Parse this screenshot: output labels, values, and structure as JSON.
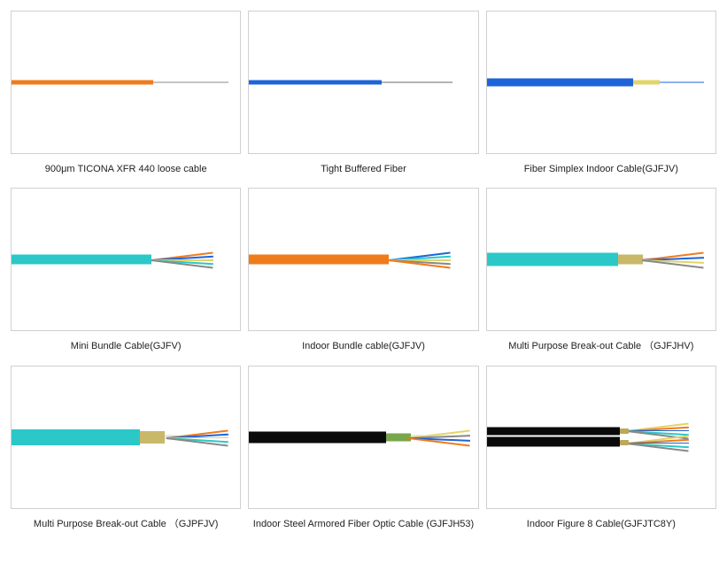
{
  "items": [
    {
      "caption": "900μm TICONA XFR 440 loose cable",
      "body_color": "#f07b1a",
      "body_width": 160,
      "body_height": 5,
      "fiber_color": "#888888",
      "fiber_start": 160,
      "fiber_end": 245,
      "style": "simple"
    },
    {
      "caption": "Tight Buffered Fiber",
      "body_color": "#1e64d8",
      "body_width": 150,
      "body_height": 5,
      "fiber_color": "#6a6a6a",
      "fiber_start": 150,
      "fiber_end": 230,
      "style": "simple"
    },
    {
      "caption": "Fiber Simplex Indoor Cable(GJFJV)",
      "body_color": "#1e64d8",
      "body_width": 165,
      "body_height": 9,
      "inner_color": "#e3d36a",
      "inner_start": 165,
      "inner_end": 195,
      "fiber_color": "#1e64d8",
      "fiber_start": 195,
      "fiber_end": 245,
      "style": "simplex"
    },
    {
      "caption": "Mini Bundle Cable(GJFV)",
      "body_color": "#2cc8c8",
      "body_width": 158,
      "body_height": 11,
      "splay_colors": [
        "#f07b1a",
        "#1e64d8",
        "#e3d36a",
        "#2cc8c8",
        "#888888"
      ],
      "splay_origin": 158,
      "style": "bundle"
    },
    {
      "caption": "Indoor Bundle cable(GJFJV)",
      "body_color": "#f07b1a",
      "body_width": 158,
      "body_height": 11,
      "splay_colors": [
        "#1e64d8",
        "#2cc8c8",
        "#e3d36a",
        "#888888",
        "#f07b1a"
      ],
      "splay_origin": 158,
      "style": "bundle"
    },
    {
      "caption": "Multi Purpose Break-out Cable （GJFJHV)",
      "body_color": "#2cc8c8",
      "body_width": 148,
      "body_height": 15,
      "inner_color": "#c9b86a",
      "splay_colors": [
        "#f07b1a",
        "#1e64d8",
        "#e3d36a",
        "#888888"
      ],
      "splay_origin": 175,
      "style": "breakout"
    },
    {
      "caption": "Multi Purpose Break-out Cable （GJPFJV)",
      "body_color": "#2cc8c8",
      "body_width": 145,
      "body_height": 18,
      "inner_color": "#c9b86a",
      "splay_colors": [
        "#f07b1a",
        "#1e64d8",
        "#e3d36a",
        "#2cc8c8",
        "#888888"
      ],
      "splay_origin": 175,
      "style": "breakout"
    },
    {
      "caption": "Indoor Steel Armored Fiber Optic Cable (GJFJH53)",
      "body_color": "#0a0a0a",
      "body_width": 155,
      "body_height": 13,
      "inner_color": "#7aa64a",
      "splay_colors": [
        "#e3d36a",
        "#888888",
        "#1e64d8",
        "#f07b1a"
      ],
      "splay_origin": 180,
      "style": "armored"
    },
    {
      "caption": "Indoor Figure 8 Cable(GJFJTC8Y)",
      "body_color": "#0a0a0a",
      "body_width": 150,
      "body_height": 20,
      "splay_colors": [
        "#e3d36a",
        "#f07b1a",
        "#1e64d8",
        "#2cc8c8",
        "#888888"
      ],
      "splay_origin": 158,
      "style": "figure8"
    }
  ],
  "colors": {
    "border": "#d0d0d0",
    "bg": "#ffffff",
    "text": "#222222"
  }
}
